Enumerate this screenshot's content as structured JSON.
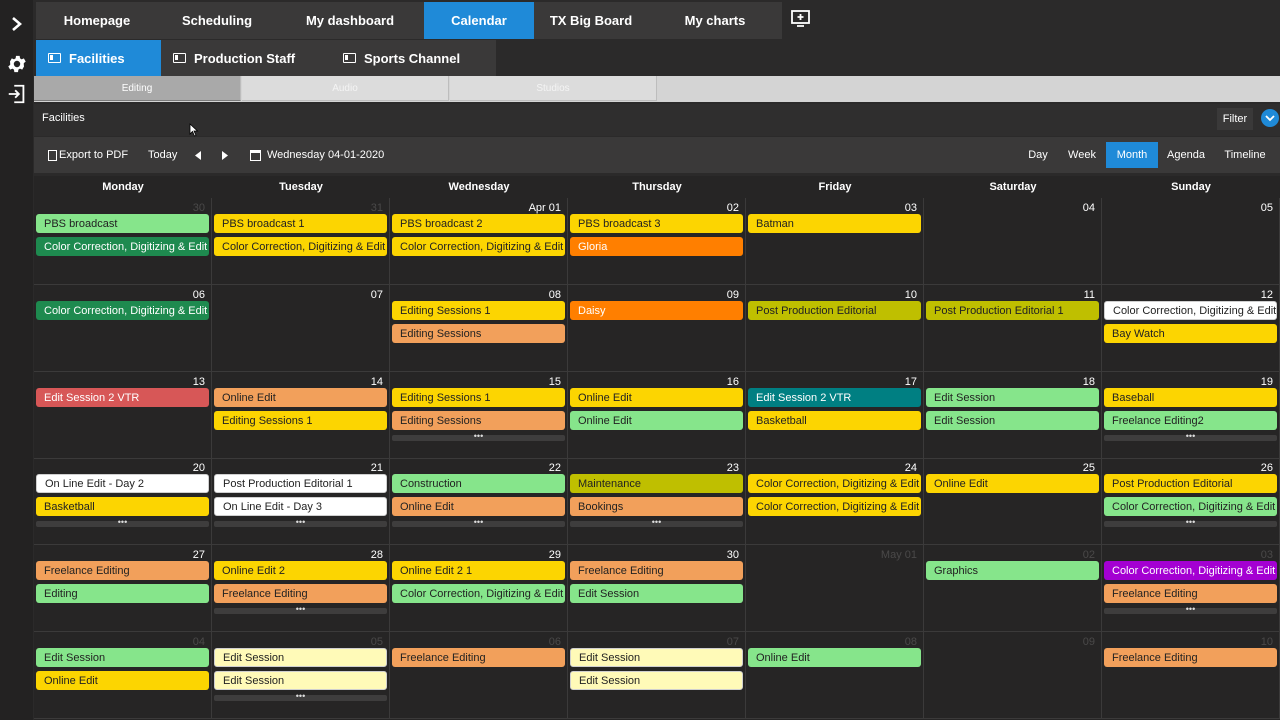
{
  "nav": {
    "tabs": [
      "Homepage",
      "Scheduling",
      "My dashboard",
      "Calendar",
      "TX Big Board",
      "My charts"
    ],
    "active_tab": "Calendar"
  },
  "subnav": {
    "tabs": [
      "Facilities",
      "Production Staff",
      "Sports Channel"
    ],
    "active_tab": "Facilities"
  },
  "thirdnav": {
    "tabs": [
      "Editing",
      "Audio",
      "Studios"
    ],
    "active_tab": "Editing"
  },
  "facilities_label": "Facilities",
  "filter_label": "Filter",
  "toolbar": {
    "export_label": "Export to PDF",
    "today_label": "Today",
    "current_date": "Wednesday 04-01-2020",
    "views": [
      "Day",
      "Week",
      "Month",
      "Agenda",
      "Timeline"
    ],
    "active_view": "Month"
  },
  "weekdays": [
    "Monday",
    "Tuesday",
    "Wednesday",
    "Thursday",
    "Friday",
    "Saturday",
    "Sunday"
  ],
  "colors": {
    "green": "#86e58b",
    "dark_green": "#1e8a4f",
    "yellow": "#fcd501",
    "orange": "#ff7f00",
    "salmon": "#f2a05b",
    "olive": "#bfbf00",
    "red": "#d75757",
    "teal": "#007f82",
    "purple": "#a400d2",
    "white": "#ffffff",
    "pale_yellow": "#fffab8",
    "accent_blue": "#1f8ad8"
  },
  "weeks": [
    {
      "days": [
        {
          "num": "30",
          "other": true,
          "more": false,
          "events": [
            {
              "title": "PBS broadcast",
              "color": "green"
            },
            {
              "title": "Color Correction, Digitizing & Edit Ma",
              "color": "dark_green"
            }
          ]
        },
        {
          "num": "31",
          "other": true,
          "more": false,
          "events": [
            {
              "title": "PBS broadcast 1",
              "color": "yellow"
            },
            {
              "title": "Color Correction, Digitizing & Edit Ma",
              "color": "yellow"
            }
          ]
        },
        {
          "num": "Apr 01",
          "other": false,
          "more": false,
          "events": [
            {
              "title": "PBS broadcast 2",
              "color": "yellow"
            },
            {
              "title": "Color Correction, Digitizing & Edit Ma",
              "color": "yellow"
            }
          ]
        },
        {
          "num": "02",
          "other": false,
          "more": false,
          "events": [
            {
              "title": "PBS broadcast 3",
              "color": "yellow"
            },
            {
              "title": "Gloria",
              "color": "orange"
            }
          ]
        },
        {
          "num": "03",
          "other": false,
          "more": false,
          "events": [
            {
              "title": "Batman",
              "color": "yellow"
            }
          ]
        },
        {
          "num": "04",
          "other": false,
          "more": false,
          "events": []
        },
        {
          "num": "05",
          "other": false,
          "more": false,
          "events": []
        }
      ]
    },
    {
      "days": [
        {
          "num": "06",
          "other": false,
          "more": false,
          "events": [
            {
              "title": "Color Correction, Digitizing & Edit Ma",
              "color": "dark_green"
            }
          ]
        },
        {
          "num": "07",
          "other": false,
          "more": false,
          "events": []
        },
        {
          "num": "08",
          "other": false,
          "more": false,
          "events": [
            {
              "title": "Editing Sessions 1",
              "color": "yellow"
            },
            {
              "title": "Editing Sessions",
              "color": "salmon"
            }
          ]
        },
        {
          "num": "09",
          "other": false,
          "more": false,
          "events": [
            {
              "title": "Daisy",
              "color": "orange"
            }
          ]
        },
        {
          "num": "10",
          "other": false,
          "more": false,
          "events": [
            {
              "title": "Post Production Editorial",
              "color": "olive"
            }
          ]
        },
        {
          "num": "11",
          "other": false,
          "more": false,
          "events": [
            {
              "title": "Post Production Editorial 1",
              "color": "olive"
            }
          ]
        },
        {
          "num": "12",
          "other": false,
          "more": false,
          "events": [
            {
              "title": "Color Correction, Digitizing & Edit Ma",
              "color": "white"
            },
            {
              "title": "Bay Watch",
              "color": "yellow"
            }
          ]
        }
      ]
    },
    {
      "days": [
        {
          "num": "13",
          "other": false,
          "more": false,
          "events": [
            {
              "title": "Edit Session 2 VTR",
              "color": "red"
            }
          ]
        },
        {
          "num": "14",
          "other": false,
          "more": false,
          "events": [
            {
              "title": "Online Edit",
              "color": "salmon"
            },
            {
              "title": "Editing Sessions 1",
              "color": "yellow"
            }
          ]
        },
        {
          "num": "15",
          "other": false,
          "more": true,
          "events": [
            {
              "title": "Editing Sessions 1",
              "color": "yellow"
            },
            {
              "title": "Editing Sessions",
              "color": "salmon"
            }
          ]
        },
        {
          "num": "16",
          "other": false,
          "more": false,
          "events": [
            {
              "title": "Online Edit",
              "color": "yellow"
            },
            {
              "title": "Online Edit",
              "color": "green"
            }
          ]
        },
        {
          "num": "17",
          "other": false,
          "more": false,
          "events": [
            {
              "title": "Edit Session 2 VTR",
              "color": "teal"
            },
            {
              "title": "Basketball",
              "color": "yellow"
            }
          ]
        },
        {
          "num": "18",
          "other": false,
          "more": false,
          "events": [
            {
              "title": "Edit Session",
              "color": "green"
            },
            {
              "title": "Edit Session",
              "color": "green"
            }
          ]
        },
        {
          "num": "19",
          "other": false,
          "more": true,
          "events": [
            {
              "title": "Baseball",
              "color": "yellow"
            },
            {
              "title": "Freelance Editing2",
              "color": "green"
            }
          ]
        }
      ]
    },
    {
      "days": [
        {
          "num": "20",
          "other": false,
          "more": true,
          "events": [
            {
              "title": "On Line Edit - Day 2",
              "color": "white"
            },
            {
              "title": "Basketball",
              "color": "yellow"
            }
          ]
        },
        {
          "num": "21",
          "other": false,
          "more": true,
          "events": [
            {
              "title": "Post Production Editorial 1",
              "color": "white"
            },
            {
              "title": "On Line Edit - Day 3",
              "color": "white"
            }
          ]
        },
        {
          "num": "22",
          "other": false,
          "more": true,
          "events": [
            {
              "title": "Construction",
              "color": "green"
            },
            {
              "title": "Online Edit",
              "color": "salmon"
            }
          ]
        },
        {
          "num": "23",
          "other": false,
          "more": true,
          "events": [
            {
              "title": "Maintenance",
              "color": "olive"
            },
            {
              "title": "Bookings",
              "color": "salmon"
            }
          ]
        },
        {
          "num": "24",
          "other": false,
          "more": false,
          "events": [
            {
              "title": "Color Correction, Digitizing & Edit Ma",
              "color": "yellow"
            },
            {
              "title": "Color Correction, Digitizing & Edit Ma",
              "color": "yellow"
            }
          ]
        },
        {
          "num": "25",
          "other": false,
          "more": false,
          "events": [
            {
              "title": "Online Edit",
              "color": "yellow"
            }
          ]
        },
        {
          "num": "26",
          "other": false,
          "more": true,
          "events": [
            {
              "title": "Post Production Editorial",
              "color": "yellow"
            },
            {
              "title": "Color Correction, Digitizing & Edit Ma",
              "color": "green"
            }
          ]
        }
      ]
    },
    {
      "days": [
        {
          "num": "27",
          "other": false,
          "more": false,
          "events": [
            {
              "title": "Freelance Editing",
              "color": "salmon"
            },
            {
              "title": "Editing",
              "color": "green"
            }
          ]
        },
        {
          "num": "28",
          "other": false,
          "more": true,
          "events": [
            {
              "title": "Online Edit 2",
              "color": "yellow"
            },
            {
              "title": "Freelance Editing",
              "color": "salmon"
            }
          ]
        },
        {
          "num": "29",
          "other": false,
          "more": false,
          "events": [
            {
              "title": "Online Edit 2 1",
              "color": "yellow"
            },
            {
              "title": "Color Correction, Digitizing & Edit Ma",
              "color": "green"
            }
          ]
        },
        {
          "num": "30",
          "other": false,
          "more": false,
          "events": [
            {
              "title": "Freelance Editing",
              "color": "salmon"
            },
            {
              "title": "Edit Session",
              "color": "green"
            }
          ]
        },
        {
          "num": "May 01",
          "other": true,
          "more": false,
          "events": []
        },
        {
          "num": "02",
          "other": true,
          "more": false,
          "events": [
            {
              "title": "Graphics",
              "color": "green"
            }
          ]
        },
        {
          "num": "03",
          "other": true,
          "more": true,
          "events": [
            {
              "title": "Color Correction, Digitizing & Edit Ma",
              "color": "purple"
            },
            {
              "title": "Freelance Editing",
              "color": "salmon"
            }
          ]
        }
      ]
    },
    {
      "days": [
        {
          "num": "04",
          "other": true,
          "more": false,
          "events": [
            {
              "title": "Edit Session",
              "color": "green"
            },
            {
              "title": "Online Edit",
              "color": "yellow"
            }
          ]
        },
        {
          "num": "05",
          "other": true,
          "more": true,
          "events": [
            {
              "title": "Edit Session",
              "color": "pale_yellow"
            },
            {
              "title": "Edit Session",
              "color": "pale_yellow"
            }
          ]
        },
        {
          "num": "06",
          "other": true,
          "more": false,
          "events": [
            {
              "title": "Freelance Editing",
              "color": "salmon"
            }
          ]
        },
        {
          "num": "07",
          "other": true,
          "more": false,
          "events": [
            {
              "title": "Edit Session",
              "color": "pale_yellow"
            },
            {
              "title": "Edit Session",
              "color": "pale_yellow"
            }
          ]
        },
        {
          "num": "08",
          "other": true,
          "more": false,
          "events": [
            {
              "title": "Online Edit",
              "color": "green"
            }
          ]
        },
        {
          "num": "09",
          "other": true,
          "more": false,
          "events": []
        },
        {
          "num": "10",
          "other": true,
          "more": false,
          "events": [
            {
              "title": "Freelance Editing",
              "color": "salmon"
            }
          ]
        }
      ]
    }
  ]
}
